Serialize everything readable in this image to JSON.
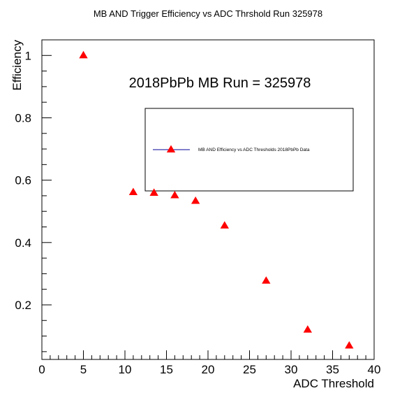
{
  "chart_data": {
    "type": "scatter",
    "title": "MB AND Trigger Efficiency vs ADC Thrshold Run 325978",
    "xlabel": "ADC Threshold",
    "ylabel": "Efficiency",
    "annotation": "2018PbPb MB Run = 325978",
    "xlim": [
      0,
      40
    ],
    "ylim": [
      0.025,
      1.05
    ],
    "x_ticks": [
      0,
      5,
      10,
      15,
      20,
      25,
      30,
      35,
      40
    ],
    "y_ticks": [
      0.2,
      0.4,
      0.6,
      0.8,
      1
    ],
    "grid": false,
    "legend_position": "upper-right",
    "series": [
      {
        "name": "MB AND Efficiency vs ADC Thresholds 2018PbPb Data",
        "color": "#ff0000",
        "line_color": "#000099",
        "marker": "triangle",
        "x": [
          5,
          11,
          13.5,
          16,
          18.5,
          22,
          27,
          32,
          37
        ],
        "y": [
          1.0,
          0.561,
          0.559,
          0.551,
          0.533,
          0.454,
          0.277,
          0.12,
          0.069
        ]
      }
    ]
  }
}
